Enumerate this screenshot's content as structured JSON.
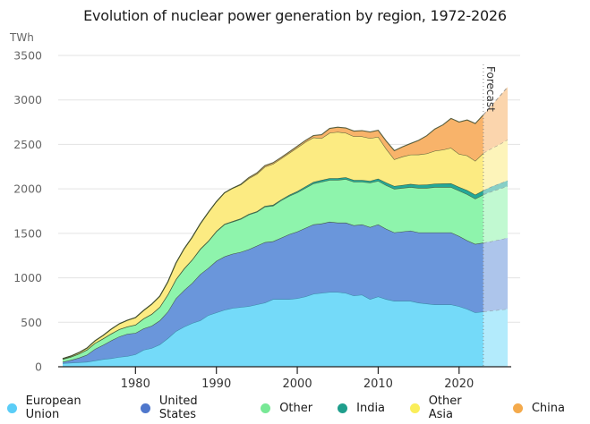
{
  "chart_data": {
    "type": "area",
    "stacked": true,
    "title": "Evolution of nuclear power generation by region, 1972-2026",
    "ylabel": "TWh",
    "xlabel": "",
    "ylim": [
      0,
      3500
    ],
    "xlim": [
      1971,
      2026
    ],
    "y_ticks": [
      "0",
      "500",
      "1000",
      "1500",
      "2000",
      "2500",
      "3000",
      "3500"
    ],
    "y_tick_values": [
      0,
      500,
      1000,
      1500,
      2000,
      2500,
      3000,
      3500
    ],
    "x_ticks": [
      "1980",
      "1990",
      "2000",
      "2010",
      "2020"
    ],
    "x_tick_values": [
      1980,
      1990,
      2000,
      2010,
      2020
    ],
    "grid": true,
    "forecast_start": 2023,
    "forecast_label": "Forecast",
    "legend_position": "bottom",
    "x": [
      1971,
      1972,
      1973,
      1974,
      1975,
      1976,
      1977,
      1978,
      1979,
      1980,
      1981,
      1982,
      1983,
      1984,
      1985,
      1986,
      1987,
      1988,
      1989,
      1990,
      1991,
      1992,
      1993,
      1994,
      1995,
      1996,
      1997,
      1998,
      1999,
      2000,
      2001,
      2002,
      2003,
      2004,
      2005,
      2006,
      2007,
      2008,
      2009,
      2010,
      2011,
      2012,
      2013,
      2014,
      2015,
      2016,
      2017,
      2018,
      2019,
      2020,
      2021,
      2022,
      2023,
      2024,
      2025,
      2026
    ],
    "series": [
      {
        "name": "European Union",
        "color": "#74daf9",
        "values": [
          40,
          45,
          50,
          55,
          70,
          85,
          95,
          110,
          120,
          140,
          190,
          210,
          250,
          320,
          400,
          450,
          490,
          520,
          580,
          610,
          640,
          660,
          670,
          680,
          700,
          720,
          760,
          760,
          760,
          770,
          790,
          820,
          830,
          840,
          840,
          830,
          800,
          810,
          760,
          790,
          760,
          740,
          740,
          740,
          720,
          710,
          700,
          700,
          700,
          680,
          650,
          610,
          620,
          630,
          640,
          650
        ]
      },
      {
        "name": "United States",
        "color": "#6a96db",
        "values": [
          15,
          30,
          50,
          80,
          130,
          160,
          200,
          230,
          250,
          240,
          240,
          250,
          270,
          300,
          370,
          410,
          450,
          520,
          530,
          580,
          600,
          610,
          620,
          640,
          660,
          680,
          650,
          690,
          730,
          750,
          770,
          780,
          780,
          790,
          780,
          790,
          790,
          790,
          810,
          810,
          790,
          770,
          780,
          790,
          790,
          800,
          810,
          810,
          810,
          790,
          770,
          770,
          775,
          780,
          790,
          800
        ]
      },
      {
        "name": "Other",
        "color": "#8ef4ac",
        "values": [
          30,
          35,
          45,
          55,
          65,
          70,
          75,
          80,
          80,
          90,
          110,
          130,
          150,
          190,
          210,
          240,
          260,
          280,
          300,
          330,
          360,
          360,
          370,
          390,
          380,
          400,
          400,
          420,
          430,
          440,
          450,
          460,
          470,
          470,
          480,
          490,
          490,
          480,
          500,
          490,
          490,
          490,
          490,
          490,
          500,
          500,
          510,
          510,
          510,
          510,
          520,
          510,
          540,
          560,
          570,
          580
        ]
      },
      {
        "name": "India",
        "color": "#24a898",
        "values": [
          2,
          2,
          2,
          2,
          2,
          3,
          3,
          3,
          3,
          3,
          3,
          3,
          3,
          4,
          5,
          5,
          5,
          6,
          6,
          6,
          6,
          7,
          7,
          7,
          7,
          8,
          10,
          10,
          12,
          14,
          17,
          18,
          19,
          20,
          20,
          20,
          20,
          20,
          20,
          25,
          30,
          32,
          33,
          35,
          36,
          38,
          38,
          40,
          42,
          42,
          45,
          45,
          48,
          55,
          60,
          65
        ]
      },
      {
        "name": "Other Asia",
        "color": "#fceb82",
        "values": [
          5,
          8,
          12,
          18,
          25,
          35,
          50,
          60,
          70,
          80,
          90,
          110,
          120,
          140,
          180,
          220,
          250,
          280,
          320,
          330,
          350,
          370,
          380,
          400,
          420,
          440,
          460,
          460,
          470,
          490,
          500,
          500,
          470,
          510,
          520,
          500,
          490,
          490,
          480,
          470,
          380,
          300,
          320,
          330,
          340,
          350,
          370,
          380,
          400,
          370,
          390,
          380,
          420,
          430,
          440,
          460
        ]
      },
      {
        "name": "China",
        "color": "#f8b36a",
        "values": [
          0,
          0,
          0,
          0,
          0,
          0,
          0,
          0,
          0,
          0,
          0,
          0,
          0,
          0,
          0,
          0,
          0,
          0,
          0,
          0,
          0,
          1,
          3,
          10,
          12,
          14,
          14,
          13,
          14,
          16,
          17,
          22,
          40,
          50,
          53,
          55,
          60,
          65,
          70,
          74,
          87,
          98,
          110,
          125,
          160,
          200,
          245,
          280,
          330,
          360,
          400,
          420,
          430,
          480,
          540,
          590
        ]
      }
    ]
  },
  "legend": {
    "items": [
      {
        "label": "European Union",
        "color": "#5bcdf7"
      },
      {
        "label": "United States",
        "color": "#4f77cc"
      },
      {
        "label": "Other",
        "color": "#78e896"
      },
      {
        "label": "India",
        "color": "#1f9e8c"
      },
      {
        "label": "Other Asia",
        "color": "#faee5a"
      },
      {
        "label": "China",
        "color": "#f4aa4c"
      }
    ]
  }
}
